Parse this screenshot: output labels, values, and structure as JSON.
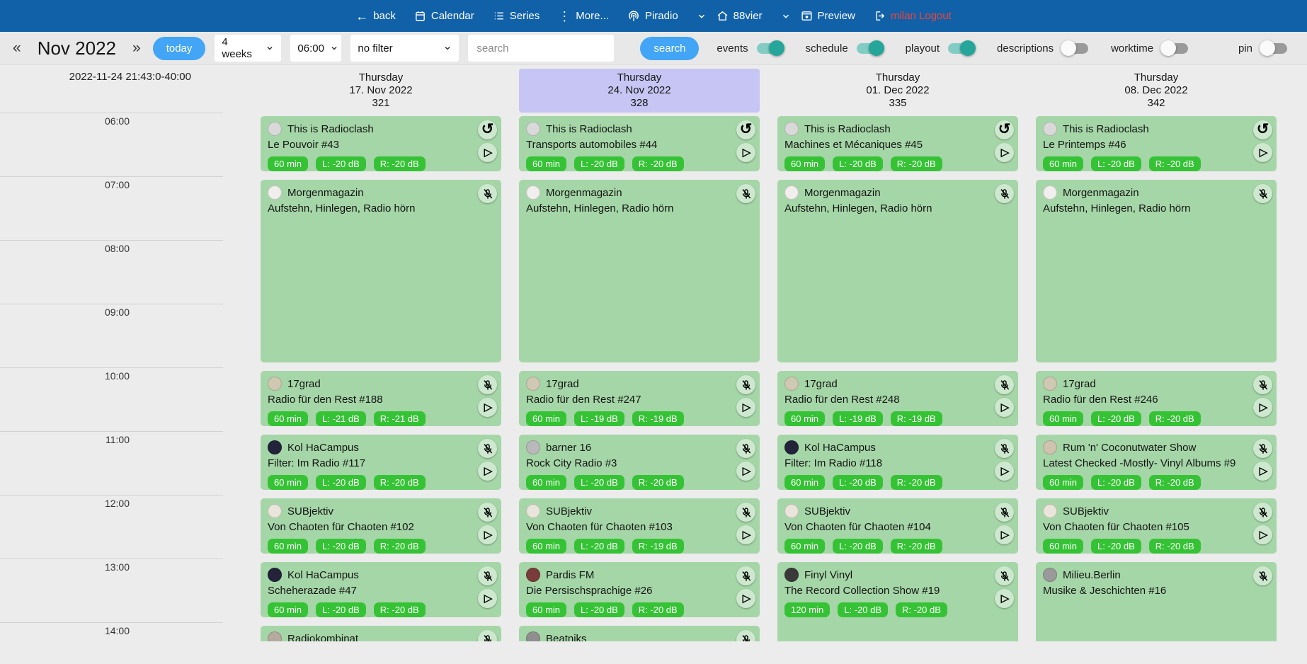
{
  "navbar": {
    "items": [
      {
        "label": "back"
      },
      {
        "label": "Calendar"
      },
      {
        "label": "Series"
      },
      {
        "label": "More..."
      },
      {
        "label": "Piradio"
      },
      {
        "label": "88vier"
      },
      {
        "label": "Preview"
      },
      {
        "label": "milan Logout"
      }
    ]
  },
  "toolbar": {
    "prev_arrow": "«",
    "next_arrow": "»",
    "month_label": "Nov 2022",
    "today_label": "today",
    "range_value": "4 weeks",
    "time_value": "06:00",
    "filter_value": "no filter",
    "search_placeholder": "search",
    "search_button": "search",
    "toggles": [
      {
        "label": "events",
        "on": true
      },
      {
        "label": "schedule",
        "on": true
      },
      {
        "label": "playout",
        "on": true
      },
      {
        "label": "descriptions",
        "on": false
      },
      {
        "label": "worktime",
        "on": false
      }
    ],
    "pin_toggle": {
      "label": "pin",
      "on": false
    }
  },
  "colors": {
    "navbar": "#1161a8",
    "logout_red": "#f44336",
    "accent_blue": "#42a5f5",
    "toggle_on": "#26a69a",
    "card_green": "#a5d6a7",
    "badge_green": "#35c335",
    "today_column_highlight": "#c7c5f3"
  },
  "calendar": {
    "timestamp": "2022-11-24 21:43:0-40:00",
    "hours": [
      "06:00",
      "07:00",
      "08:00",
      "09:00",
      "10:00",
      "11:00",
      "12:00",
      "13:00",
      "14:00"
    ],
    "columns": [
      {
        "weekday": "Thursday",
        "date": "17. Nov 2022",
        "day_number": "321",
        "highlight": false,
        "events": [
          {
            "show": "This is Radioclash",
            "title": "Le Pouvoir #43",
            "start": 6,
            "hours": 1,
            "badges": [
              "60 min",
              "L: -20 dB",
              "R: -20 dB"
            ],
            "icons": [
              "replay",
              "play"
            ],
            "avatar": "#d9d9d9"
          },
          {
            "show": "Morgenmagazin",
            "title": "Aufstehn, Hinlegen, Radio hörn",
            "start": 7,
            "hours": 3,
            "badges": [],
            "icons": [
              "mic-off"
            ],
            "avatar": "#f0efed"
          },
          {
            "show": "17grad",
            "title": "Radio für den Rest #188",
            "start": 10,
            "hours": 1,
            "badges": [
              "60 min",
              "L: -21 dB",
              "R: -21 dB"
            ],
            "icons": [
              "mic-off",
              "play"
            ],
            "avatar": "#cfc9b4"
          },
          {
            "show": "Kol HaCampus",
            "title": "Filter: Im Radio #117",
            "start": 11,
            "hours": 1,
            "badges": [
              "60 min",
              "L: -20 dB",
              "R: -20 dB"
            ],
            "icons": [
              "mic-off",
              "play"
            ],
            "avatar": "#23233a"
          },
          {
            "show": "SUBjektiv",
            "title": "Von Chaoten für Chaoten #102",
            "start": 12,
            "hours": 1,
            "badges": [
              "60 min",
              "L: -20 dB",
              "R: -20 dB"
            ],
            "icons": [
              "mic-off",
              "play"
            ],
            "avatar": "#e9e5db"
          },
          {
            "show": "Kol HaCampus",
            "title": "Scheherazade #47",
            "start": 13,
            "hours": 1,
            "badges": [
              "60 min",
              "L: -20 dB",
              "R: -20 dB"
            ],
            "icons": [
              "mic-off",
              "play"
            ],
            "avatar": "#23233a"
          },
          {
            "show": "Radiokombinat",
            "title": "",
            "start": 14,
            "hours": 1,
            "badges": [],
            "icons": [
              "mic-off"
            ],
            "avatar": "#b4ab9e"
          }
        ]
      },
      {
        "weekday": "Thursday",
        "date": "24. Nov 2022",
        "day_number": "328",
        "highlight": true,
        "events": [
          {
            "show": "This is Radioclash",
            "title": "Transports automobiles #44",
            "start": 6,
            "hours": 1,
            "badges": [
              "60 min",
              "L: -20 dB",
              "R: -20 dB"
            ],
            "icons": [
              "replay",
              "play"
            ],
            "avatar": "#d9d9d9"
          },
          {
            "show": "Morgenmagazin",
            "title": "Aufstehn, Hinlegen, Radio hörn",
            "start": 7,
            "hours": 3,
            "badges": [],
            "icons": [
              "mic-off"
            ],
            "avatar": "#f0efed"
          },
          {
            "show": "17grad",
            "title": "Radio für den Rest #247",
            "start": 10,
            "hours": 1,
            "badges": [
              "60 min",
              "L: -19 dB",
              "R: -19 dB"
            ],
            "icons": [
              "mic-off",
              "play"
            ],
            "avatar": "#cfc9b4"
          },
          {
            "show": "barner 16",
            "title": "Rock City Radio #3",
            "start": 11,
            "hours": 1,
            "badges": [
              "60 min",
              "L: -20 dB",
              "R: -20 dB"
            ],
            "icons": [
              "mic-off",
              "play"
            ],
            "avatar": "#b9b9b9"
          },
          {
            "show": "SUBjektiv",
            "title": "Von Chaoten für Chaoten #103",
            "start": 12,
            "hours": 1,
            "badges": [
              "60 min",
              "L: -20 dB",
              "R: -19 dB"
            ],
            "icons": [
              "mic-off",
              "play"
            ],
            "avatar": "#e9e5db"
          },
          {
            "show": "Pardis FM",
            "title": "Die Persischsprachige #26",
            "start": 13,
            "hours": 1,
            "badges": [
              "60 min",
              "L: -20 dB",
              "R: -20 dB"
            ],
            "icons": [
              "mic-off",
              "play"
            ],
            "avatar": "#7a3b3b"
          },
          {
            "show": "Beatniks",
            "title": "",
            "start": 14,
            "hours": 1,
            "badges": [],
            "icons": [
              "mic-off"
            ],
            "avatar": "#8f8f8f"
          }
        ]
      },
      {
        "weekday": "Thursday",
        "date": "01. Dec 2022",
        "day_number": "335",
        "highlight": false,
        "events": [
          {
            "show": "This is Radioclash",
            "title": "Machines et Mécaniques #45",
            "start": 6,
            "hours": 1,
            "badges": [
              "60 min",
              "L: -20 dB",
              "R: -20 dB"
            ],
            "icons": [
              "replay",
              "play"
            ],
            "avatar": "#d9d9d9"
          },
          {
            "show": "Morgenmagazin",
            "title": "Aufstehn, Hinlegen, Radio hörn",
            "start": 7,
            "hours": 3,
            "badges": [],
            "icons": [
              "mic-off"
            ],
            "avatar": "#f0efed"
          },
          {
            "show": "17grad",
            "title": "Radio für den Rest #248",
            "start": 10,
            "hours": 1,
            "badges": [
              "60 min",
              "L: -19 dB",
              "R: -19 dB"
            ],
            "icons": [
              "mic-off",
              "play"
            ],
            "avatar": "#cfc9b4"
          },
          {
            "show": "Kol HaCampus",
            "title": "Filter: Im Radio #118",
            "start": 11,
            "hours": 1,
            "badges": [
              "60 min",
              "L: -20 dB",
              "R: -20 dB"
            ],
            "icons": [
              "mic-off",
              "play"
            ],
            "avatar": "#23233a"
          },
          {
            "show": "SUBjektiv",
            "title": "Von Chaoten für Chaoten #104",
            "start": 12,
            "hours": 1,
            "badges": [
              "60 min",
              "L: -20 dB",
              "R: -20 dB"
            ],
            "icons": [
              "mic-off",
              "play"
            ],
            "avatar": "#e9e5db"
          },
          {
            "show": "Finyl Vinyl",
            "title": "The Record Collection Show #19",
            "start": 13,
            "hours": 2,
            "badges": [
              "120 min",
              "L: -20 dB",
              "R: -20 dB"
            ],
            "icons": [
              "mic-off",
              "play"
            ],
            "avatar": "#3a3a3a"
          }
        ]
      },
      {
        "weekday": "Thursday",
        "date": "08. Dec 2022",
        "day_number": "342",
        "highlight": false,
        "events": [
          {
            "show": "This is Radioclash",
            "title": "Le Printemps #46",
            "start": 6,
            "hours": 1,
            "badges": [
              "60 min",
              "L: -20 dB",
              "R: -20 dB"
            ],
            "icons": [
              "replay",
              "play"
            ],
            "avatar": "#d9d9d9"
          },
          {
            "show": "Morgenmagazin",
            "title": "Aufstehn, Hinlegen, Radio hörn",
            "start": 7,
            "hours": 3,
            "badges": [],
            "icons": [
              "mic-off"
            ],
            "avatar": "#f0efed"
          },
          {
            "show": "17grad",
            "title": "Radio für den Rest #246",
            "start": 10,
            "hours": 1,
            "badges": [
              "60 min",
              "L: -20 dB",
              "R: -20 dB"
            ],
            "icons": [
              "mic-off",
              "play"
            ],
            "avatar": "#cfc9b4"
          },
          {
            "show": "Rum 'n' Coconutwater Show",
            "title": "Latest Checked -Mostly- Vinyl Albums #9",
            "start": 11,
            "hours": 1,
            "badges": [
              "60 min",
              "L: -20 dB",
              "R: -20 dB"
            ],
            "icons": [
              "mic-off",
              "play"
            ],
            "avatar": "#cfc3b0"
          },
          {
            "show": "SUBjektiv",
            "title": "Von Chaoten für Chaoten #105",
            "start": 12,
            "hours": 1,
            "badges": [
              "60 min",
              "L: -20 dB",
              "R: -20 dB"
            ],
            "icons": [
              "mic-off",
              "play"
            ],
            "avatar": "#e9e5db"
          },
          {
            "show": "Milieu.Berlin",
            "title": "Musike & Jeschichten #16",
            "start": 13,
            "hours": 2,
            "badges": [],
            "icons": [
              "mic-off"
            ],
            "avatar": "#9a9a9a"
          }
        ]
      }
    ]
  }
}
